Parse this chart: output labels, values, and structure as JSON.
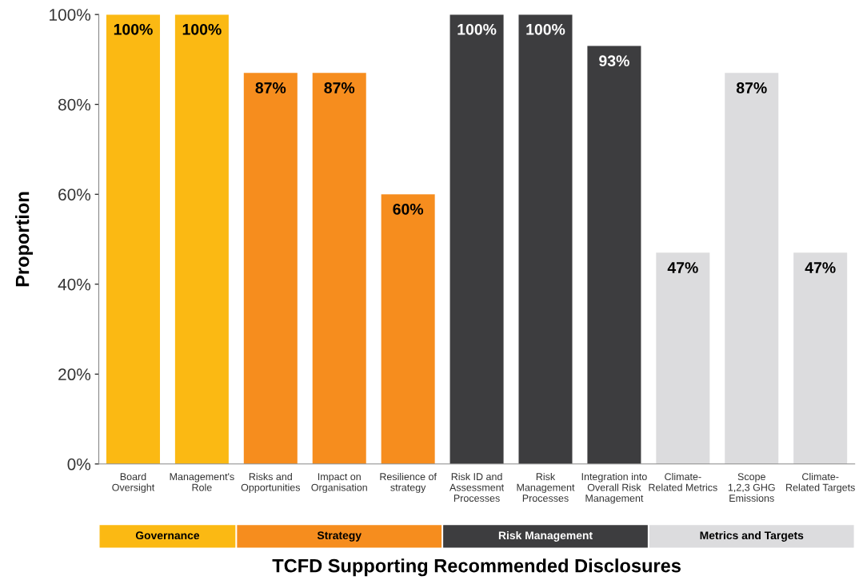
{
  "chart_data": {
    "type": "bar",
    "xlabel": "TCFD Supporting Recommended Disclosures",
    "ylabel": "Proportion",
    "categories": [
      "Board\nOversight",
      "Management's\nRole",
      "Risks and\nOpportunities",
      "Impact on\nOrganisation",
      "Resilience of\nstrategy",
      "Risk ID and\nAssessment\nProcesses",
      "Risk\nManagement\nProcesses",
      "Integration into\nOverall Risk\nManagement",
      "Climate-\nRelated Metrics",
      "Scope\n1,2,3 GHG\nEmissions",
      "Climate-\nRelated Targets"
    ],
    "series": [
      {
        "name": "Governance",
        "color": "#fbb913",
        "values": [
          100,
          100,
          null,
          null,
          null,
          null,
          null,
          null,
          null,
          null,
          null
        ],
        "value_labels": [
          "100%",
          "100%",
          null,
          null,
          null,
          null,
          null,
          null,
          null,
          null,
          null
        ]
      },
      {
        "name": "Strategy",
        "color": "#f68d1e",
        "values": [
          null,
          null,
          87,
          87,
          60,
          null,
          null,
          null,
          null,
          null,
          null
        ],
        "value_labels": [
          null,
          null,
          "87%",
          "87%",
          "60%",
          null,
          null,
          null,
          null,
          null,
          null
        ]
      },
      {
        "name": "Risk Management",
        "color": "#3d3d3f",
        "values": [
          null,
          null,
          null,
          null,
          null,
          100,
          100,
          93,
          null,
          null,
          null
        ],
        "value_labels": [
          null,
          null,
          null,
          null,
          null,
          "100%",
          "100%",
          "93%",
          null,
          null,
          null
        ]
      },
      {
        "name": "Metrics and Targets",
        "color": "#dcdcde",
        "values": [
          null,
          null,
          null,
          null,
          null,
          null,
          null,
          null,
          47,
          87,
          47
        ],
        "value_labels": [
          null,
          null,
          null,
          null,
          null,
          null,
          null,
          null,
          "47%",
          "87%",
          "47%"
        ]
      }
    ],
    "ylim": [
      0,
      100
    ],
    "yticks": [
      {
        "value": 0,
        "label": "0%"
      },
      {
        "value": 20,
        "label": "20%"
      },
      {
        "value": 40,
        "label": "40%"
      },
      {
        "value": 60,
        "label": "60%"
      },
      {
        "value": 80,
        "label": "80%"
      },
      {
        "value": 100,
        "label": "100%"
      }
    ],
    "grid": false,
    "legend": "bottom"
  }
}
